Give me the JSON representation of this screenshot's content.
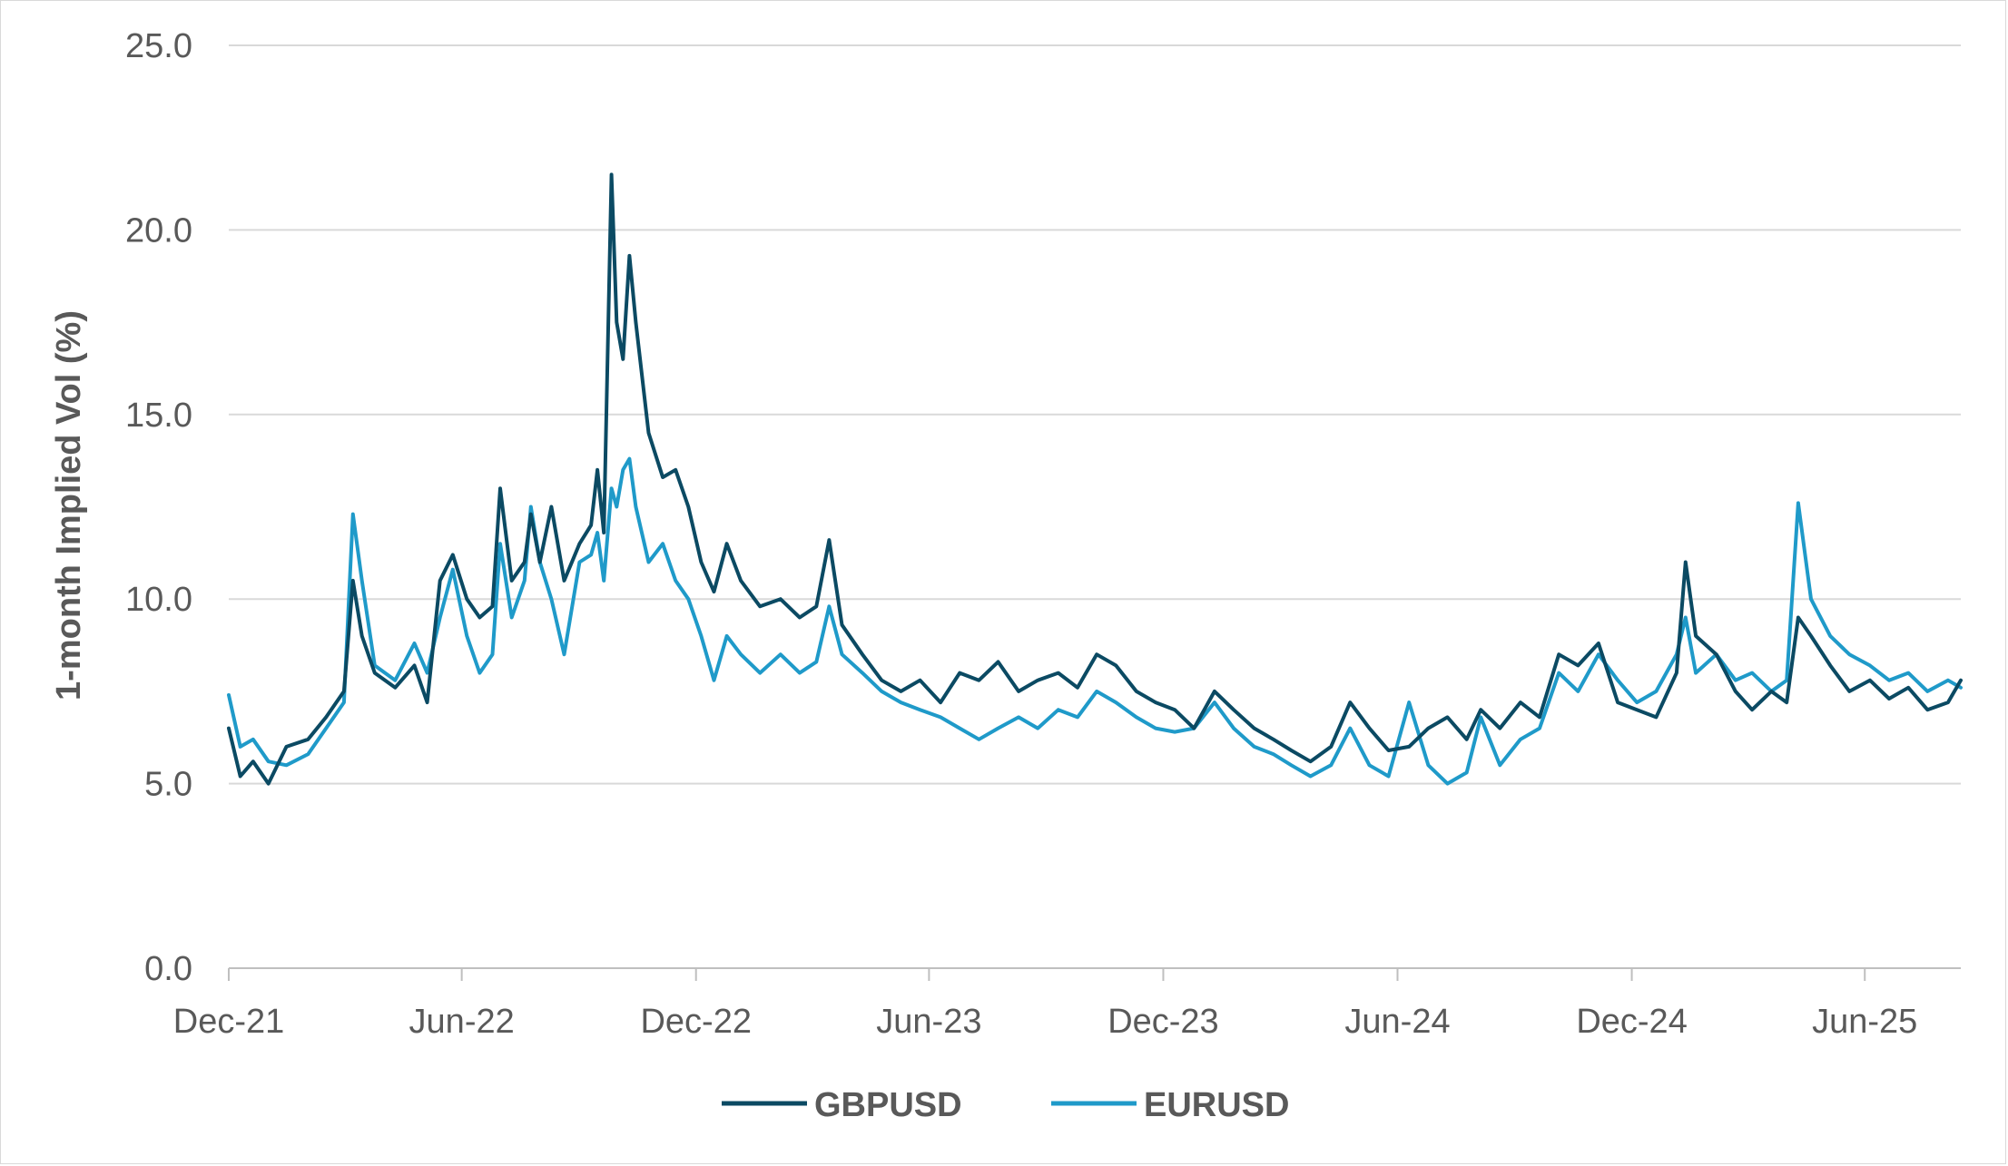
{
  "chart_data": {
    "type": "line",
    "title": "",
    "xlabel": "",
    "ylabel": "1-month Implied Vol (%)",
    "ylim": [
      0,
      25
    ],
    "yticks": [
      "0.0",
      "5.0",
      "10.0",
      "15.0",
      "20.0",
      "25.0"
    ],
    "xticks": [
      "Dec-21",
      "Jun-22",
      "Dec-22",
      "Jun-23",
      "Dec-23",
      "Jun-24",
      "Dec-24",
      "Jun-25"
    ],
    "x_range": [
      "2021-12-01",
      "2025-08-15"
    ],
    "grid": true,
    "legend_position": "bottom-center",
    "series": [
      {
        "name": "GBPUSD",
        "color": "#0b4a63",
        "points": [
          [
            "2021-12-01",
            6.5
          ],
          [
            "2021-12-10",
            5.2
          ],
          [
            "2021-12-20",
            5.6
          ],
          [
            "2022-01-01",
            5.0
          ],
          [
            "2022-01-15",
            6.0
          ],
          [
            "2022-02-01",
            6.2
          ],
          [
            "2022-02-15",
            6.8
          ],
          [
            "2022-03-01",
            7.5
          ],
          [
            "2022-03-08",
            10.5
          ],
          [
            "2022-03-15",
            9.0
          ],
          [
            "2022-03-25",
            8.0
          ],
          [
            "2022-04-10",
            7.6
          ],
          [
            "2022-04-25",
            8.2
          ],
          [
            "2022-05-05",
            7.2
          ],
          [
            "2022-05-15",
            10.5
          ],
          [
            "2022-05-25",
            11.2
          ],
          [
            "2022-06-05",
            10.0
          ],
          [
            "2022-06-15",
            9.5
          ],
          [
            "2022-06-25",
            9.8
          ],
          [
            "2022-07-01",
            13.0
          ],
          [
            "2022-07-10",
            10.5
          ],
          [
            "2022-07-20",
            11.0
          ],
          [
            "2022-07-25",
            12.3
          ],
          [
            "2022-08-01",
            11.0
          ],
          [
            "2022-08-10",
            12.5
          ],
          [
            "2022-08-20",
            10.5
          ],
          [
            "2022-09-01",
            11.5
          ],
          [
            "2022-09-10",
            12.0
          ],
          [
            "2022-09-15",
            13.5
          ],
          [
            "2022-09-20",
            11.8
          ],
          [
            "2022-09-26",
            21.5
          ],
          [
            "2022-09-30",
            17.5
          ],
          [
            "2022-10-05",
            16.5
          ],
          [
            "2022-10-10",
            19.3
          ],
          [
            "2022-10-15",
            17.5
          ],
          [
            "2022-10-25",
            14.5
          ],
          [
            "2022-11-05",
            13.3
          ],
          [
            "2022-11-15",
            13.5
          ],
          [
            "2022-11-25",
            12.5
          ],
          [
            "2022-12-05",
            11.0
          ],
          [
            "2022-12-15",
            10.2
          ],
          [
            "2022-12-25",
            11.5
          ],
          [
            "2023-01-05",
            10.5
          ],
          [
            "2023-01-20",
            9.8
          ],
          [
            "2023-02-05",
            10.0
          ],
          [
            "2023-02-20",
            9.5
          ],
          [
            "2023-03-05",
            9.8
          ],
          [
            "2023-03-15",
            11.6
          ],
          [
            "2023-03-25",
            9.3
          ],
          [
            "2023-04-10",
            8.5
          ],
          [
            "2023-04-25",
            7.8
          ],
          [
            "2023-05-10",
            7.5
          ],
          [
            "2023-05-25",
            7.8
          ],
          [
            "2023-06-10",
            7.2
          ],
          [
            "2023-06-25",
            8.0
          ],
          [
            "2023-07-10",
            7.8
          ],
          [
            "2023-07-25",
            8.3
          ],
          [
            "2023-08-10",
            7.5
          ],
          [
            "2023-08-25",
            7.8
          ],
          [
            "2023-09-10",
            8.0
          ],
          [
            "2023-09-25",
            7.6
          ],
          [
            "2023-10-10",
            8.5
          ],
          [
            "2023-10-25",
            8.2
          ],
          [
            "2023-11-10",
            7.5
          ],
          [
            "2023-11-25",
            7.2
          ],
          [
            "2023-12-10",
            7.0
          ],
          [
            "2023-12-25",
            6.5
          ],
          [
            "2024-01-10",
            7.5
          ],
          [
            "2024-01-25",
            7.0
          ],
          [
            "2024-02-10",
            6.5
          ],
          [
            "2024-02-25",
            6.2
          ],
          [
            "2024-03-10",
            5.9
          ],
          [
            "2024-03-25",
            5.6
          ],
          [
            "2024-04-10",
            6.0
          ],
          [
            "2024-04-25",
            7.2
          ],
          [
            "2024-05-10",
            6.5
          ],
          [
            "2024-05-25",
            5.9
          ],
          [
            "2024-06-10",
            6.0
          ],
          [
            "2024-06-25",
            6.5
          ],
          [
            "2024-07-10",
            6.8
          ],
          [
            "2024-07-25",
            6.2
          ],
          [
            "2024-08-05",
            7.0
          ],
          [
            "2024-08-20",
            6.5
          ],
          [
            "2024-09-05",
            7.2
          ],
          [
            "2024-09-20",
            6.8
          ],
          [
            "2024-10-05",
            8.5
          ],
          [
            "2024-10-20",
            8.2
          ],
          [
            "2024-11-05",
            8.8
          ],
          [
            "2024-11-20",
            7.2
          ],
          [
            "2024-12-05",
            7.0
          ],
          [
            "2024-12-20",
            6.8
          ],
          [
            "2025-01-05",
            8.0
          ],
          [
            "2025-01-12",
            11.0
          ],
          [
            "2025-01-20",
            9.0
          ],
          [
            "2025-02-05",
            8.5
          ],
          [
            "2025-02-20",
            7.5
          ],
          [
            "2025-03-05",
            7.0
          ],
          [
            "2025-03-20",
            7.5
          ],
          [
            "2025-04-01",
            7.2
          ],
          [
            "2025-04-10",
            9.5
          ],
          [
            "2025-04-20",
            9.0
          ],
          [
            "2025-05-05",
            8.2
          ],
          [
            "2025-05-20",
            7.5
          ],
          [
            "2025-06-05",
            7.8
          ],
          [
            "2025-06-20",
            7.3
          ],
          [
            "2025-07-05",
            7.6
          ],
          [
            "2025-07-20",
            7.0
          ],
          [
            "2025-08-05",
            7.2
          ],
          [
            "2025-08-15",
            7.8
          ]
        ]
      },
      {
        "name": "EURUSD",
        "color": "#1f9ac9",
        "points": [
          [
            "2021-12-01",
            7.4
          ],
          [
            "2021-12-10",
            6.0
          ],
          [
            "2021-12-20",
            6.2
          ],
          [
            "2022-01-01",
            5.6
          ],
          [
            "2022-01-15",
            5.5
          ],
          [
            "2022-02-01",
            5.8
          ],
          [
            "2022-02-15",
            6.5
          ],
          [
            "2022-03-01",
            7.2
          ],
          [
            "2022-03-08",
            12.3
          ],
          [
            "2022-03-15",
            10.5
          ],
          [
            "2022-03-25",
            8.2
          ],
          [
            "2022-04-10",
            7.8
          ],
          [
            "2022-04-25",
            8.8
          ],
          [
            "2022-05-05",
            8.0
          ],
          [
            "2022-05-15",
            9.5
          ],
          [
            "2022-05-25",
            10.8
          ],
          [
            "2022-06-05",
            9.0
          ],
          [
            "2022-06-15",
            8.0
          ],
          [
            "2022-06-25",
            8.5
          ],
          [
            "2022-07-01",
            11.5
          ],
          [
            "2022-07-10",
            9.5
          ],
          [
            "2022-07-20",
            10.5
          ],
          [
            "2022-07-25",
            12.5
          ],
          [
            "2022-08-01",
            11.0
          ],
          [
            "2022-08-10",
            10.0
          ],
          [
            "2022-08-20",
            8.5
          ],
          [
            "2022-09-01",
            11.0
          ],
          [
            "2022-09-10",
            11.2
          ],
          [
            "2022-09-15",
            11.8
          ],
          [
            "2022-09-20",
            10.5
          ],
          [
            "2022-09-26",
            13.0
          ],
          [
            "2022-09-30",
            12.5
          ],
          [
            "2022-10-05",
            13.5
          ],
          [
            "2022-10-10",
            13.8
          ],
          [
            "2022-10-15",
            12.5
          ],
          [
            "2022-10-25",
            11.0
          ],
          [
            "2022-11-05",
            11.5
          ],
          [
            "2022-11-15",
            10.5
          ],
          [
            "2022-11-25",
            10.0
          ],
          [
            "2022-12-05",
            9.0
          ],
          [
            "2022-12-15",
            7.8
          ],
          [
            "2022-12-25",
            9.0
          ],
          [
            "2023-01-05",
            8.5
          ],
          [
            "2023-01-20",
            8.0
          ],
          [
            "2023-02-05",
            8.5
          ],
          [
            "2023-02-20",
            8.0
          ],
          [
            "2023-03-05",
            8.3
          ],
          [
            "2023-03-15",
            9.8
          ],
          [
            "2023-03-25",
            8.5
          ],
          [
            "2023-04-10",
            8.0
          ],
          [
            "2023-04-25",
            7.5
          ],
          [
            "2023-05-10",
            7.2
          ],
          [
            "2023-05-25",
            7.0
          ],
          [
            "2023-06-10",
            6.8
          ],
          [
            "2023-06-25",
            6.5
          ],
          [
            "2023-07-10",
            6.2
          ],
          [
            "2023-07-25",
            6.5
          ],
          [
            "2023-08-10",
            6.8
          ],
          [
            "2023-08-25",
            6.5
          ],
          [
            "2023-09-10",
            7.0
          ],
          [
            "2023-09-25",
            6.8
          ],
          [
            "2023-10-10",
            7.5
          ],
          [
            "2023-10-25",
            7.2
          ],
          [
            "2023-11-10",
            6.8
          ],
          [
            "2023-11-25",
            6.5
          ],
          [
            "2023-12-10",
            6.4
          ],
          [
            "2023-12-25",
            6.5
          ],
          [
            "2024-01-10",
            7.2
          ],
          [
            "2024-01-25",
            6.5
          ],
          [
            "2024-02-10",
            6.0
          ],
          [
            "2024-02-25",
            5.8
          ],
          [
            "2024-03-10",
            5.5
          ],
          [
            "2024-03-25",
            5.2
          ],
          [
            "2024-04-10",
            5.5
          ],
          [
            "2024-04-25",
            6.5
          ],
          [
            "2024-05-10",
            5.5
          ],
          [
            "2024-05-25",
            5.2
          ],
          [
            "2024-06-10",
            7.2
          ],
          [
            "2024-06-25",
            5.5
          ],
          [
            "2024-07-10",
            5.0
          ],
          [
            "2024-07-25",
            5.3
          ],
          [
            "2024-08-05",
            6.8
          ],
          [
            "2024-08-20",
            5.5
          ],
          [
            "2024-09-05",
            6.2
          ],
          [
            "2024-09-20",
            6.5
          ],
          [
            "2024-10-05",
            8.0
          ],
          [
            "2024-10-20",
            7.5
          ],
          [
            "2024-11-05",
            8.5
          ],
          [
            "2024-11-20",
            7.8
          ],
          [
            "2024-12-05",
            7.2
          ],
          [
            "2024-12-20",
            7.5
          ],
          [
            "2025-01-05",
            8.5
          ],
          [
            "2025-01-12",
            9.5
          ],
          [
            "2025-01-20",
            8.0
          ],
          [
            "2025-02-05",
            8.5
          ],
          [
            "2025-02-20",
            7.8
          ],
          [
            "2025-03-05",
            8.0
          ],
          [
            "2025-03-20",
            7.5
          ],
          [
            "2025-04-01",
            7.8
          ],
          [
            "2025-04-10",
            12.6
          ],
          [
            "2025-04-20",
            10.0
          ],
          [
            "2025-05-05",
            9.0
          ],
          [
            "2025-05-20",
            8.5
          ],
          [
            "2025-06-05",
            8.2
          ],
          [
            "2025-06-20",
            7.8
          ],
          [
            "2025-07-05",
            8.0
          ],
          [
            "2025-07-20",
            7.5
          ],
          [
            "2025-08-05",
            7.8
          ],
          [
            "2025-08-15",
            7.6
          ]
        ]
      }
    ]
  }
}
